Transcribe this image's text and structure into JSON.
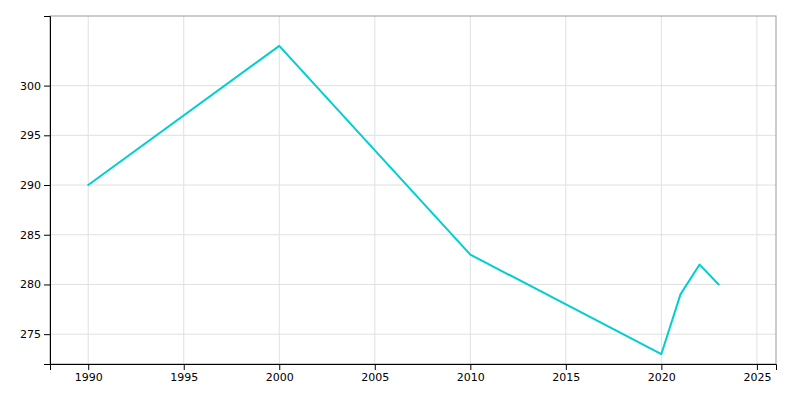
{
  "chart_data": {
    "type": "line",
    "x": [
      1990,
      2000,
      2010,
      2020,
      2021,
      2022,
      2023
    ],
    "values": [
      290,
      304,
      283,
      273,
      279,
      282,
      280
    ],
    "color": "#00CED1",
    "xlim": [
      1988,
      2026
    ],
    "ylim": [
      272,
      307
    ],
    "xticks": [
      1990,
      1995,
      2000,
      2005,
      2010,
      2015,
      2020,
      2025
    ],
    "yticks": [
      275,
      280,
      285,
      290,
      295,
      300
    ],
    "grid": true
  }
}
